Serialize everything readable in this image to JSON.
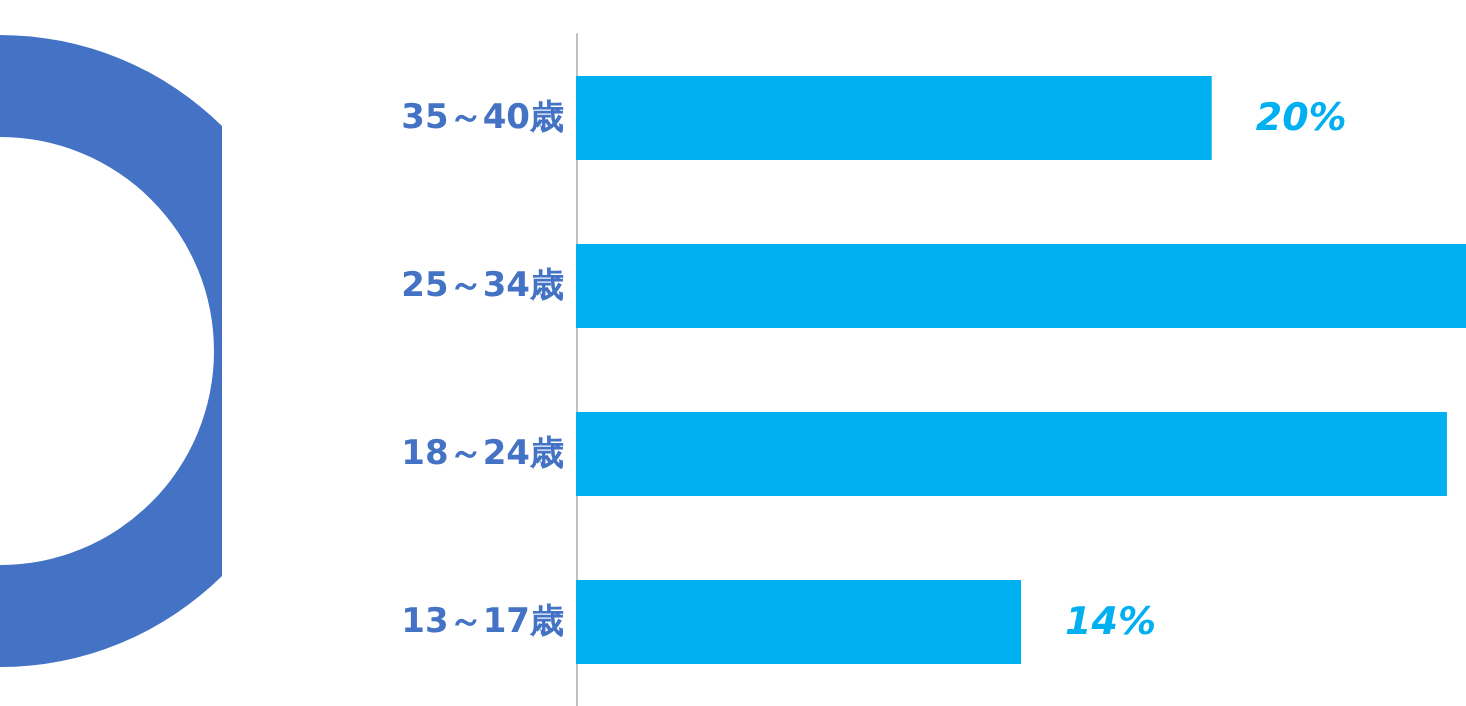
{
  "chart_data": {
    "type": "bar",
    "orientation": "horizontal",
    "categories": [
      "35～40歳",
      "25～34歳",
      "18～24歳",
      "13～17歳"
    ],
    "series": [
      {
        "color": "#00b0f0",
        "values": [
          20,
          28,
          27.4,
          14
        ],
        "value_labels": [
          "20%",
          null,
          null,
          "14%"
        ]
      }
    ],
    "xlim": [
      0,
      28
    ],
    "tick_labels": "y"
  }
}
